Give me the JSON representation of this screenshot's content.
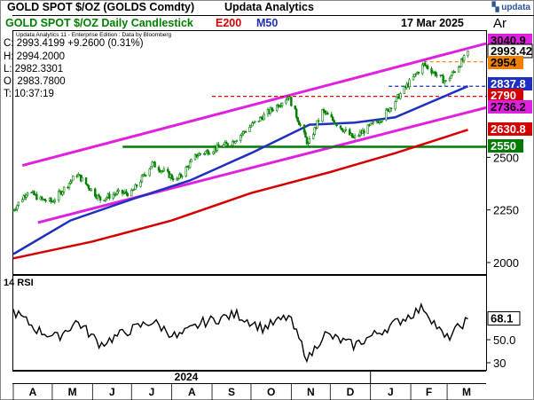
{
  "header": {
    "instrument": "GOLD SPOT $/OZ (GOLDS Comdty)",
    "provider": "Updata Analytics",
    "logo_text": "updata",
    "chart_title": "GOLD SPOT $/OZ Daily Candlestick",
    "ma200_label": "E200",
    "ma50_label": "M50",
    "date": "17 Mar 2025",
    "scale_label": "Ar"
  },
  "edition": "Updata Analytics 11 - Enterprise Edition : Data by Bloomberg",
  "ohlc": {
    "close": "C: 2993.4199  +9.2600 (0.31%)",
    "high": "H: 2994.2000",
    "low": "L: 2982.3301",
    "open": "O: 2983.7800",
    "time": "T: 10:37:19"
  },
  "colors": {
    "candle": "#008000",
    "ma50": "#1f2fbf",
    "ma200": "#d40000",
    "channel": "#e020e0",
    "support": "#007a00",
    "rsi": "#000000",
    "axis_box": "#000000"
  },
  "chart_data": [
    {
      "type": "candlestick",
      "title": "GOLD SPOT $/OZ Daily Candlestick",
      "x_tick_labels": [
        "A",
        "M",
        "J",
        "J",
        "A",
        "S",
        "O",
        "N",
        "D",
        "J",
        "F",
        "M"
      ],
      "year_labels": [
        "2024"
      ],
      "y_ticks": [
        2000,
        2250,
        2500
      ],
      "y_range": [
        1980,
        3080
      ],
      "price_path": [
        {
          "t": "2024-04-01",
          "v": 2250
        },
        {
          "t": "2024-04-12",
          "v": 2340
        },
        {
          "t": "2024-04-22",
          "v": 2300
        },
        {
          "t": "2024-05-01",
          "v": 2290
        },
        {
          "t": "2024-05-20",
          "v": 2420
        },
        {
          "t": "2024-06-07",
          "v": 2300
        },
        {
          "t": "2024-06-20",
          "v": 2330
        },
        {
          "t": "2024-07-01",
          "v": 2330
        },
        {
          "t": "2024-07-17",
          "v": 2470
        },
        {
          "t": "2024-08-05",
          "v": 2390
        },
        {
          "t": "2024-08-20",
          "v": 2510
        },
        {
          "t": "2024-09-16",
          "v": 2570
        },
        {
          "t": "2024-10-01",
          "v": 2650
        },
        {
          "t": "2024-10-30",
          "v": 2790
        },
        {
          "t": "2024-11-14",
          "v": 2560
        },
        {
          "t": "2024-11-25",
          "v": 2720
        },
        {
          "t": "2024-12-19",
          "v": 2590
        },
        {
          "t": "2025-01-10",
          "v": 2690
        },
        {
          "t": "2025-02-11",
          "v": 2942
        },
        {
          "t": "2025-02-28",
          "v": 2858
        },
        {
          "t": "2025-03-17",
          "v": 2993
        }
      ],
      "levels": [
        {
          "label": "3040.9",
          "value": 3040.9,
          "color": "#e020e0"
        },
        {
          "label": "2993.42",
          "value": 2993.42,
          "color": "#008000",
          "current": true
        },
        {
          "label": "2954",
          "value": 2954,
          "color": "#f08000"
        },
        {
          "label": "2837.8",
          "value": 2837.8,
          "color": "#1f2fbf"
        },
        {
          "label": "2790",
          "value": 2790,
          "color": "#d40000"
        },
        {
          "label": "2736.2",
          "value": 2736.2,
          "color": "#e020e0"
        },
        {
          "label": "2630.8",
          "value": 2630.8,
          "color": "#d40000"
        },
        {
          "label": "2550",
          "value": 2550,
          "color": "#007a00"
        }
      ],
      "resistance_lines": [
        {
          "value": 2954,
          "from": "2025-02-11",
          "color": "#f08000",
          "style": "dashed"
        },
        {
          "value": 2837.8,
          "from": "2025-01-15",
          "color": "#1f2fbf",
          "style": "dashed"
        },
        {
          "value": 2790,
          "from": "2024-09-01",
          "color": "#d40000",
          "style": "dashed"
        }
      ],
      "support_line": {
        "value": 2550,
        "from": "2024-07-01",
        "color": "#007a00"
      },
      "channel": {
        "upper": [
          {
            "t": "2024-04-01",
            "v": 2450
          },
          {
            "t": "2025-03-31",
            "v": 3040.9
          }
        ],
        "lower": [
          {
            "t": "2024-04-01",
            "v": 2160
          },
          {
            "t": "2025-03-31",
            "v": 2736.2
          }
        ]
      },
      "moving_averages": [
        {
          "name": "M50",
          "color": "#1f2fbf",
          "points": [
            {
              "t": "2024-04-01",
              "v": 2040
            },
            {
              "t": "2024-05-15",
              "v": 2200
            },
            {
              "t": "2024-07-01",
              "v": 2300
            },
            {
              "t": "2024-08-15",
              "v": 2390
            },
            {
              "t": "2024-10-01",
              "v": 2520
            },
            {
              "t": "2024-11-15",
              "v": 2655
            },
            {
              "t": "2024-12-20",
              "v": 2665
            },
            {
              "t": "2025-01-20",
              "v": 2690
            },
            {
              "t": "2025-03-17",
              "v": 2838
            }
          ]
        },
        {
          "name": "E200",
          "color": "#d40000",
          "points": [
            {
              "t": "2024-04-01",
              "v": 2020
            },
            {
              "t": "2024-06-01",
              "v": 2100
            },
            {
              "t": "2024-08-01",
              "v": 2200
            },
            {
              "t": "2024-10-01",
              "v": 2330
            },
            {
              "t": "2024-12-01",
              "v": 2430
            },
            {
              "t": "2025-01-20",
              "v": 2520
            },
            {
              "t": "2025-03-17",
              "v": 2631
            }
          ]
        }
      ]
    },
    {
      "type": "line",
      "title": "14 RSI",
      "y_ticks": [
        50.0,
        30
      ],
      "y_range": [
        25,
        85
      ],
      "current_value": 68.1,
      "current_label": "68.1",
      "points": [
        {
          "t": "2024-04-01",
          "v": 75
        },
        {
          "t": "2024-04-20",
          "v": 58
        },
        {
          "t": "2024-05-05",
          "v": 52
        },
        {
          "t": "2024-05-20",
          "v": 66
        },
        {
          "t": "2024-06-07",
          "v": 46
        },
        {
          "t": "2024-06-25",
          "v": 56
        },
        {
          "t": "2024-07-17",
          "v": 66
        },
        {
          "t": "2024-08-05",
          "v": 52
        },
        {
          "t": "2024-08-25",
          "v": 65
        },
        {
          "t": "2024-09-20",
          "v": 72
        },
        {
          "t": "2024-10-10",
          "v": 60
        },
        {
          "t": "2024-10-30",
          "v": 70
        },
        {
          "t": "2024-11-14",
          "v": 33
        },
        {
          "t": "2024-11-26",
          "v": 55
        },
        {
          "t": "2024-12-19",
          "v": 45
        },
        {
          "t": "2025-01-10",
          "v": 58
        },
        {
          "t": "2025-02-11",
          "v": 78
        },
        {
          "t": "2025-02-28",
          "v": 50
        },
        {
          "t": "2025-03-17",
          "v": 68.1
        }
      ]
    }
  ]
}
